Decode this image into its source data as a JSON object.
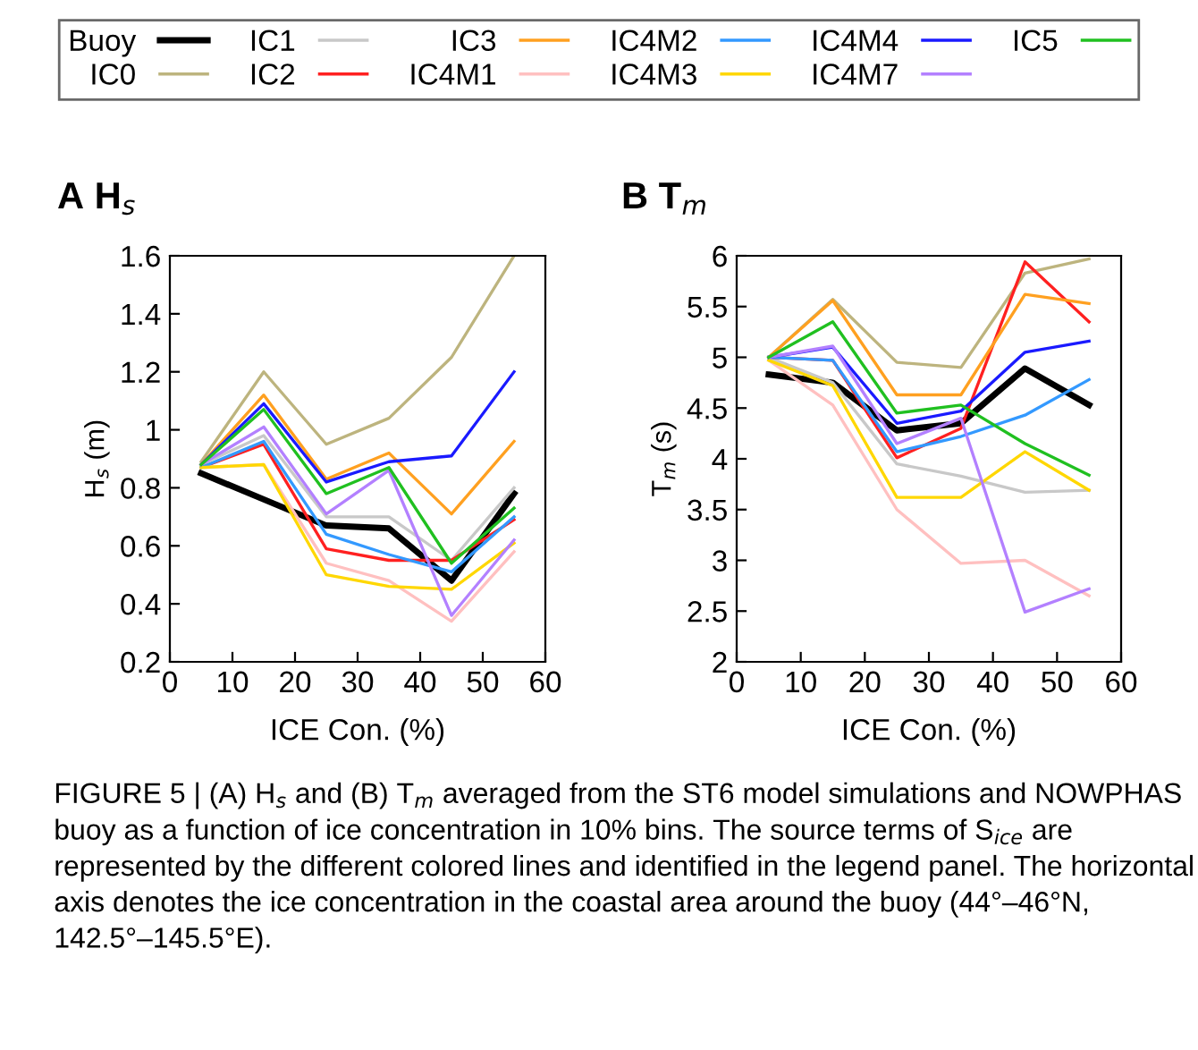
{
  "chart_data": [
    {
      "type": "line",
      "title": "A H$_{s}$",
      "xlabel": "ICE Con. (%)",
      "ylabel": "H$_{s}$ (m)",
      "x": [
        5,
        15,
        25,
        35,
        45,
        55
      ],
      "xlim": [
        0,
        60
      ],
      "xticks": [
        0,
        10,
        20,
        30,
        40,
        50,
        60
      ],
      "ylim": [
        0.2,
        1.6
      ],
      "yticks": [
        0.2,
        0.4,
        0.6,
        0.8,
        1,
        1.2,
        1.4,
        1.6
      ],
      "grid": false,
      "legend": "top",
      "marker": "none",
      "line_style": "solid",
      "series": [
        {
          "name": "Buoy",
          "color": "#000000",
          "values": [
            0.85,
            0.76,
            0.67,
            0.66,
            0.48,
            0.78
          ]
        },
        {
          "name": "IC0",
          "color": "#bdb47e",
          "values": [
            0.89,
            1.2,
            0.95,
            1.04,
            1.25,
            1.6
          ]
        },
        {
          "name": "IC1",
          "color": "#c8c8c8",
          "values": [
            0.88,
            0.98,
            0.7,
            0.7,
            0.55,
            0.8
          ]
        },
        {
          "name": "IC2",
          "color": "#ff2020",
          "values": [
            0.87,
            0.95,
            0.59,
            0.55,
            0.55,
            0.69
          ]
        },
        {
          "name": "IC3",
          "color": "#ffa020",
          "values": [
            0.88,
            1.12,
            0.83,
            0.92,
            0.71,
            0.96
          ]
        },
        {
          "name": "IC4M1",
          "color": "#ffc0c0",
          "values": [
            0.87,
            0.88,
            0.54,
            0.48,
            0.34,
            0.58
          ]
        },
        {
          "name": "IC4M2",
          "color": "#3399ff",
          "values": [
            0.87,
            0.96,
            0.64,
            0.57,
            0.51,
            0.7
          ]
        },
        {
          "name": "IC4M3",
          "color": "#ffd700",
          "values": [
            0.87,
            0.88,
            0.5,
            0.46,
            0.45,
            0.61
          ]
        },
        {
          "name": "IC4M4",
          "color": "#1a1aff",
          "values": [
            0.88,
            1.09,
            0.82,
            0.89,
            0.91,
            1.2
          ]
        },
        {
          "name": "IC4M7",
          "color": "#b380ff",
          "values": [
            0.88,
            1.01,
            0.71,
            0.86,
            0.36,
            0.62
          ]
        },
        {
          "name": "IC5",
          "color": "#20c020",
          "values": [
            0.88,
            1.07,
            0.78,
            0.87,
            0.54,
            0.73
          ]
        }
      ]
    },
    {
      "type": "line",
      "title": "B T$_{m}$",
      "xlabel": "ICE Con. (%)",
      "ylabel": "T$_{m}$ (s)",
      "x": [
        5,
        15,
        25,
        35,
        45,
        55
      ],
      "xlim": [
        0,
        60
      ],
      "xticks": [
        0,
        10,
        20,
        30,
        40,
        50,
        60
      ],
      "ylim": [
        2,
        6
      ],
      "yticks": [
        2,
        2.5,
        3,
        3.5,
        4,
        4.5,
        5,
        5.5,
        6
      ],
      "grid": false,
      "marker": "none",
      "line_style": "solid",
      "annotations": [
        "FIGURE 5 | (A) H$_{s}$ and (B) T$_{m}$ averaged from the ST6 model simulations and NOWPHAS buoy as a function of ice concentration in 10% bins. The source terms of S$_{ice}$ are represented by the different colored lines and identified in the legend panel. The horizontal axis denotes the ice concentration in the coastal area around the buoy (44°–46°N, 142.5°–145.5°E)."
      ],
      "series": [
        {
          "color": "#000000",
          "values": [
            4.83,
            4.75,
            4.28,
            4.35,
            4.89,
            4.53
          ]
        },
        {
          "color": "#bdb47e",
          "values": [
            5.0,
            5.57,
            4.95,
            4.9,
            5.83,
            5.97
          ]
        },
        {
          "color": "#c8c8c8",
          "values": [
            5.0,
            4.75,
            3.95,
            3.83,
            3.67,
            3.69
          ]
        },
        {
          "color": "#ff2020",
          "values": [
            5.0,
            4.97,
            4.01,
            4.3,
            5.94,
            5.35
          ]
        },
        {
          "color": "#ffa020",
          "values": [
            5.0,
            5.56,
            4.63,
            4.63,
            5.62,
            5.53
          ]
        },
        {
          "color": "#ffc0c0",
          "values": [
            4.97,
            4.53,
            3.5,
            2.97,
            3.0,
            2.65
          ]
        },
        {
          "color": "#3399ff",
          "values": [
            5.0,
            4.97,
            4.07,
            4.22,
            4.43,
            4.78
          ]
        },
        {
          "color": "#ffd700",
          "values": [
            4.97,
            4.72,
            3.62,
            3.62,
            4.07,
            3.69
          ]
        },
        {
          "color": "#1a1aff",
          "values": [
            5.0,
            5.1,
            4.35,
            4.47,
            5.05,
            5.16
          ]
        },
        {
          "color": "#b380ff",
          "values": [
            5.0,
            5.11,
            4.15,
            4.4,
            2.49,
            2.72
          ]
        },
        {
          "color": "#20c020",
          "values": [
            5.0,
            5.35,
            4.45,
            4.53,
            4.15,
            3.84
          ]
        }
      ]
    }
  ]
}
